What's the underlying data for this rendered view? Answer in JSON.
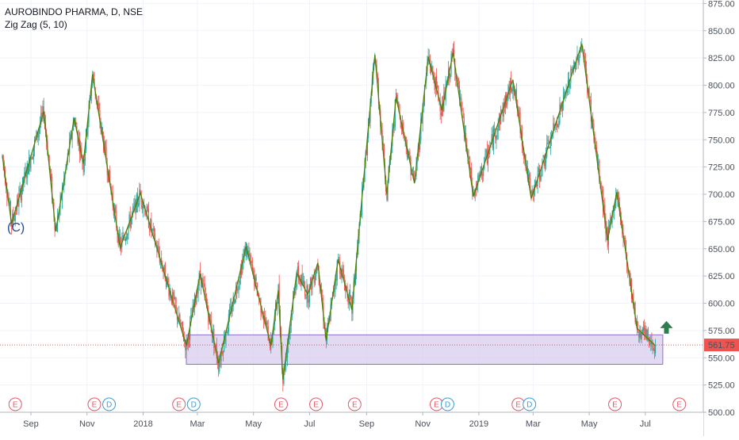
{
  "chart_data": {
    "type": "line",
    "title": "AUROBINDO PHARMA, D, NSE",
    "indicator": "Zig Zag (5, 10)",
    "wave_label": "(C)",
    "price_label": "561.75",
    "ylim": [
      500,
      875
    ],
    "y_ticks": [
      "500.00",
      "525.00",
      "550.00",
      "575.00",
      "600.00",
      "625.00",
      "650.00",
      "675.00",
      "700.00",
      "725.00",
      "750.00",
      "775.00",
      "800.00",
      "825.00",
      "850.00",
      "875.00"
    ],
    "x_ticks": [
      {
        "label": "Sep",
        "day": 31
      },
      {
        "label": "Nov",
        "day": 92
      },
      {
        "label": "2018",
        "day": 153
      },
      {
        "label": "Mar",
        "day": 212
      },
      {
        "label": "May",
        "day": 273
      },
      {
        "label": "Jul",
        "day": 334
      },
      {
        "label": "Sep",
        "day": 396
      },
      {
        "label": "Nov",
        "day": 457
      },
      {
        "label": "2019",
        "day": 518
      },
      {
        "label": "Mar",
        "day": 577
      },
      {
        "label": "May",
        "day": 638
      },
      {
        "label": "Jul",
        "day": 699
      }
    ],
    "zigzag": [
      {
        "day": 0,
        "price": 735
      },
      {
        "day": 10,
        "price": 673
      },
      {
        "day": 45,
        "price": 776
      },
      {
        "day": 58,
        "price": 666
      },
      {
        "day": 78,
        "price": 770
      },
      {
        "day": 88,
        "price": 728
      },
      {
        "day": 98,
        "price": 810
      },
      {
        "day": 128,
        "price": 651
      },
      {
        "day": 150,
        "price": 701
      },
      {
        "day": 200,
        "price": 561
      },
      {
        "day": 215,
        "price": 627
      },
      {
        "day": 235,
        "price": 545
      },
      {
        "day": 265,
        "price": 652
      },
      {
        "day": 292,
        "price": 561
      },
      {
        "day": 300,
        "price": 612
      },
      {
        "day": 305,
        "price": 530
      },
      {
        "day": 320,
        "price": 628
      },
      {
        "day": 332,
        "price": 608
      },
      {
        "day": 343,
        "price": 637
      },
      {
        "day": 352,
        "price": 566
      },
      {
        "day": 365,
        "price": 640
      },
      {
        "day": 380,
        "price": 594
      },
      {
        "day": 405,
        "price": 828
      },
      {
        "day": 418,
        "price": 700
      },
      {
        "day": 428,
        "price": 789
      },
      {
        "day": 448,
        "price": 710
      },
      {
        "day": 463,
        "price": 826
      },
      {
        "day": 478,
        "price": 777
      },
      {
        "day": 490,
        "price": 830
      },
      {
        "day": 512,
        "price": 698
      },
      {
        "day": 555,
        "price": 805
      },
      {
        "day": 575,
        "price": 696
      },
      {
        "day": 630,
        "price": 838
      },
      {
        "day": 658,
        "price": 658
      },
      {
        "day": 668,
        "price": 702
      },
      {
        "day": 690,
        "price": 577
      },
      {
        "day": 710,
        "price": 561
      }
    ],
    "support_zone": {
      "day_start": 200,
      "day_end": 718,
      "top": 571,
      "bottom": 544
    },
    "current_price": 561.75,
    "arrow": {
      "day": 722,
      "price": 575,
      "direction": "up"
    },
    "events": [
      {
        "day": 14,
        "type": "E"
      },
      {
        "day": 100,
        "type": "E"
      },
      {
        "day": 116,
        "type": "D"
      },
      {
        "day": 192,
        "type": "E"
      },
      {
        "day": 208,
        "type": "D"
      },
      {
        "day": 303,
        "type": "E"
      },
      {
        "day": 341,
        "type": "E"
      },
      {
        "day": 383,
        "type": "E"
      },
      {
        "day": 472,
        "type": "E"
      },
      {
        "day": 484,
        "type": "D"
      },
      {
        "day": 561,
        "type": "E"
      },
      {
        "day": 573,
        "type": "D"
      },
      {
        "day": 666,
        "type": "E"
      },
      {
        "day": 736,
        "type": "E"
      }
    ]
  },
  "colors": {
    "up": "#26a69a",
    "down": "#ef5350",
    "zigzag": "#4f7f08",
    "zone_fill": "#d8ccef",
    "zone_stroke": "#8f6fce",
    "price_line": "#ef5350",
    "arrow": "#2e7d4f",
    "event_e": "#e05a6a",
    "event_d": "#3d9bd6"
  }
}
